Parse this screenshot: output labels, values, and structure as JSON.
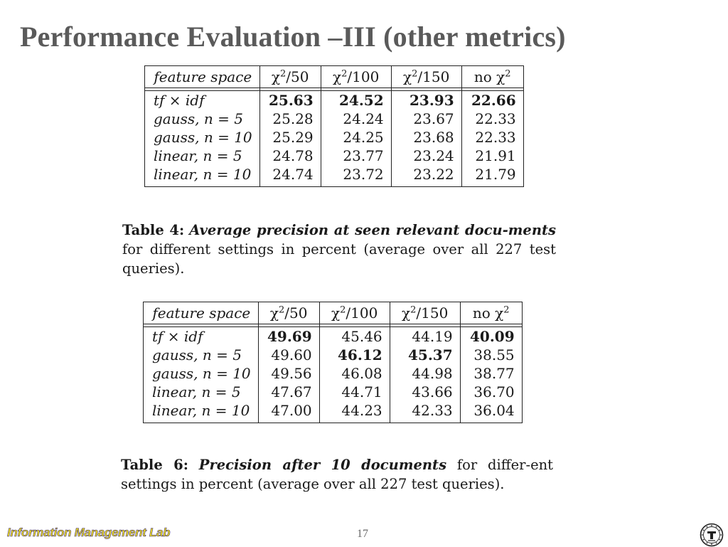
{
  "slide": {
    "title": "Performance Evaluation –III (other metrics)",
    "page_number": "17",
    "footer_lab": "Information Management Lab"
  },
  "table4": {
    "headers": [
      "feature space",
      "/50",
      "/100",
      "/150",
      "no "
    ],
    "header_symbol": "χ",
    "header_power": "2",
    "rows": [
      {
        "name": "tf × idf",
        "values": [
          "25.63",
          "24.52",
          "23.93",
          "22.66"
        ],
        "bold": [
          true,
          true,
          true,
          true
        ]
      },
      {
        "name": "gauss, n = 5",
        "values": [
          "25.28",
          "24.24",
          "23.67",
          "22.33"
        ],
        "bold": [
          false,
          false,
          false,
          false
        ]
      },
      {
        "name": "gauss, n = 10",
        "values": [
          "25.29",
          "24.25",
          "23.68",
          "22.33"
        ],
        "bold": [
          false,
          false,
          false,
          false
        ]
      },
      {
        "name": "linear, n = 5",
        "values": [
          "24.78",
          "23.77",
          "23.24",
          "21.91"
        ],
        "bold": [
          false,
          false,
          false,
          false
        ]
      },
      {
        "name": "linear, n = 10",
        "values": [
          "24.74",
          "23.72",
          "23.22",
          "21.79"
        ],
        "bold": [
          false,
          false,
          false,
          false
        ]
      }
    ],
    "caption": {
      "label": "Table 4:",
      "emphasis": "Average precision at seen relevant docu-ments",
      "text": "for different settings in percent (average over all 227 test queries)."
    }
  },
  "table6": {
    "headers": [
      "feature space",
      "/50",
      "/100",
      "/150",
      "no "
    ],
    "header_symbol": "χ",
    "header_power": "2",
    "rows": [
      {
        "name": "tf × idf",
        "values": [
          "49.69",
          "45.46",
          "44.19",
          "40.09"
        ],
        "bold": [
          true,
          false,
          false,
          true
        ]
      },
      {
        "name": "gauss, n = 5",
        "values": [
          "49.60",
          "46.12",
          "45.37",
          "38.55"
        ],
        "bold": [
          false,
          true,
          true,
          false
        ]
      },
      {
        "name": "gauss, n = 10",
        "values": [
          "49.56",
          "46.08",
          "44.98",
          "38.77"
        ],
        "bold": [
          false,
          false,
          false,
          false
        ]
      },
      {
        "name": "linear, n = 5",
        "values": [
          "47.67",
          "44.71",
          "43.66",
          "36.70"
        ],
        "bold": [
          false,
          false,
          false,
          false
        ]
      },
      {
        "name": "linear, n = 10",
        "values": [
          "47.00",
          "44.23",
          "42.33",
          "36.04"
        ],
        "bold": [
          false,
          false,
          false,
          false
        ]
      }
    ],
    "caption": {
      "label": "Table 6:",
      "emphasis": "Precision after 10 documents",
      "text": "for differ-ent settings in percent (average over all 227 test queries)."
    }
  },
  "colors": {
    "title": "#5a5a5a",
    "footer_lab_fill": "#f0e020",
    "footer_lab_outline": "#3a2a80"
  },
  "icons": {
    "seal": "university-seal-icon"
  }
}
